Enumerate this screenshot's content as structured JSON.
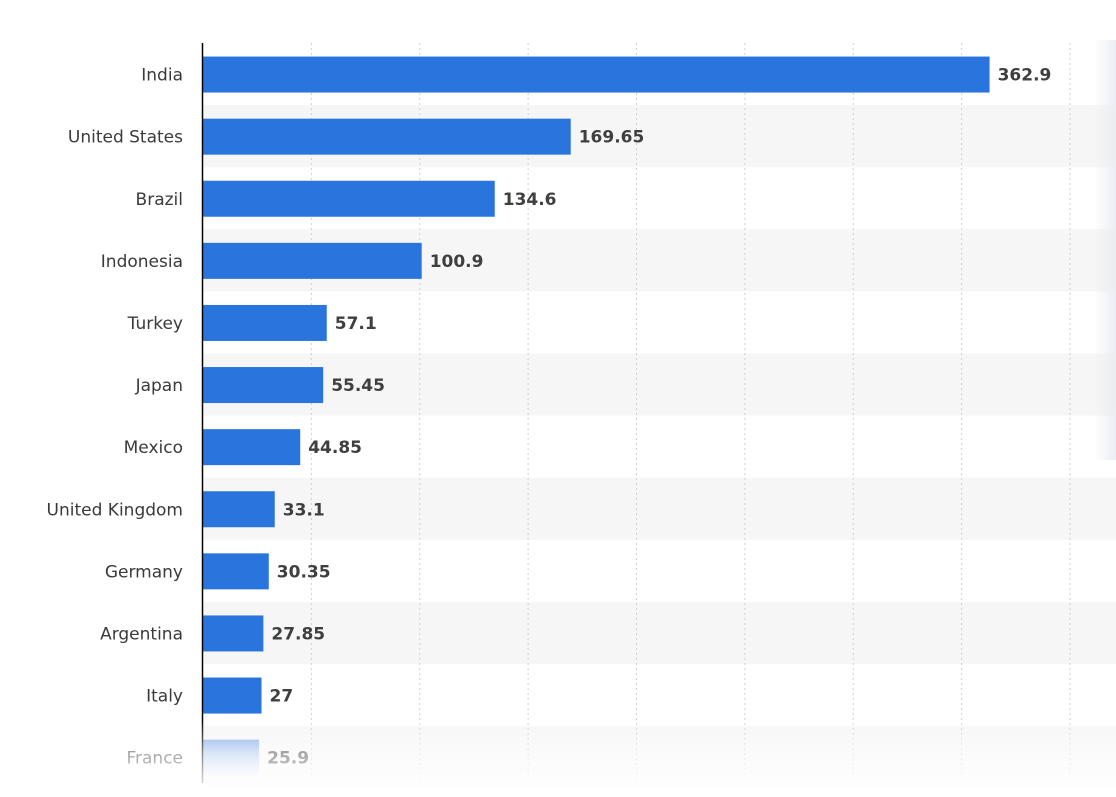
{
  "chart_data": {
    "type": "bar",
    "orientation": "horizontal",
    "categories": [
      "India",
      "United States",
      "Brazil",
      "Indonesia",
      "Turkey",
      "Japan",
      "Mexico",
      "United Kingdom",
      "Germany",
      "Argentina",
      "Italy",
      "France"
    ],
    "values": [
      362.9,
      169.65,
      134.6,
      100.9,
      57.1,
      55.45,
      44.85,
      33.1,
      30.35,
      27.85,
      27,
      25.9
    ],
    "value_labels": [
      "362.9",
      "169.65",
      "134.6",
      "100.9",
      "57.1",
      "55.45",
      "44.85",
      "33.1",
      "30.35",
      "27.85",
      "27",
      "25.9"
    ],
    "xlim": [
      0,
      400
    ],
    "grid": true,
    "legend": "none",
    "colors": {
      "bar": "#2a74de",
      "band": "#f6f6f6",
      "grid": "#cfcfcf",
      "axis": "#000000"
    }
  }
}
